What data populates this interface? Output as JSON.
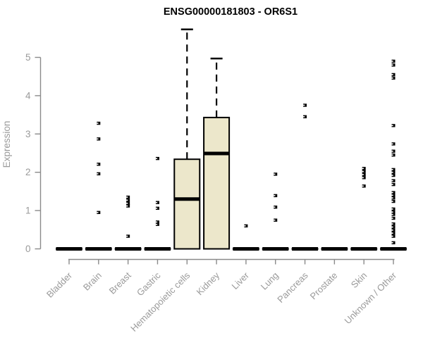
{
  "chart_data": {
    "type": "boxplot",
    "title": "ENSG00000181803 - OR6S1",
    "ylabel": "Expression",
    "xlabel": "",
    "ylim": [
      0,
      5
    ],
    "yticks": [
      0,
      1,
      2,
      3,
      4,
      5
    ],
    "grid": false,
    "legend": null,
    "colors": {
      "box_fill": "#ece7cb",
      "box_border": "#000000",
      "median": "#000000",
      "axis_line": "#8a8a8a",
      "axis_text": "#9a9a9a",
      "title_text": "#000000",
      "outlier": "#000000"
    },
    "categories": [
      "Bladder",
      "Brain",
      "Breast",
      "Gastric",
      "Hematopoietic cells",
      "Kidney",
      "Liver",
      "Lung",
      "Pancreas",
      "Prostate",
      "Skin",
      "Unknown / Other"
    ],
    "boxes": [
      {
        "category": "Bladder",
        "min": 0,
        "q1": 0,
        "median": 0,
        "q3": 0,
        "whisker_high": 0,
        "outliers": []
      },
      {
        "category": "Brain",
        "min": 0,
        "q1": 0,
        "median": 0,
        "q3": 0,
        "whisker_high": 0,
        "outliers": [
          3.28,
          2.87,
          2.21,
          1.96,
          0.95
        ]
      },
      {
        "category": "Breast",
        "min": 0,
        "q1": 0,
        "median": 0,
        "q3": 0,
        "whisker_high": 0,
        "outliers": [
          1.35,
          1.27,
          1.19,
          1.12,
          0.33
        ]
      },
      {
        "category": "Gastric",
        "min": 0,
        "q1": 0,
        "median": 0,
        "q3": 0,
        "whisker_high": 0,
        "outliers": [
          2.36,
          1.21,
          1.06,
          0.7,
          0.64
        ]
      },
      {
        "category": "Hematopoietic cells",
        "min": 0,
        "q1": 0,
        "median": 1.3,
        "q3": 2.34,
        "whisker_high": 5.73,
        "outliers": []
      },
      {
        "category": "Kidney",
        "min": 0,
        "q1": 0,
        "median": 2.49,
        "q3": 3.43,
        "whisker_high": 4.97,
        "outliers": []
      },
      {
        "category": "Liver",
        "min": 0,
        "q1": 0,
        "median": 0,
        "q3": 0,
        "whisker_high": 0,
        "outliers": [
          0.6
        ]
      },
      {
        "category": "Lung",
        "min": 0,
        "q1": 0,
        "median": 0,
        "q3": 0,
        "whisker_high": 0,
        "outliers": [
          1.95,
          1.39,
          1.09,
          0.75
        ]
      },
      {
        "category": "Pancreas",
        "min": 0,
        "q1": 0,
        "median": 0,
        "q3": 0,
        "whisker_high": 0,
        "outliers": [
          3.75,
          3.45
        ]
      },
      {
        "category": "Prostate",
        "min": 0,
        "q1": 0,
        "median": 0,
        "q3": 0,
        "whisker_high": 0,
        "outliers": []
      },
      {
        "category": "Skin",
        "min": 0,
        "q1": 0,
        "median": 0,
        "q3": 0,
        "whisker_high": 0,
        "outliers": [
          2.1,
          2.02,
          1.94,
          1.86,
          1.64
        ]
      },
      {
        "category": "Unknown / Other",
        "min": 0,
        "q1": 0,
        "median": 0,
        "q3": 0,
        "whisker_high": 0,
        "outliers": [
          4.9,
          4.8,
          4.55,
          4.46,
          3.22,
          2.74,
          2.55,
          2.45,
          2.07,
          2.0,
          1.92,
          1.78,
          1.68,
          1.47,
          1.4,
          1.33,
          1.24,
          1.04,
          0.96,
          0.9,
          0.8,
          0.65,
          0.57,
          0.49,
          0.41,
          0.33,
          0.16
        ]
      }
    ]
  }
}
